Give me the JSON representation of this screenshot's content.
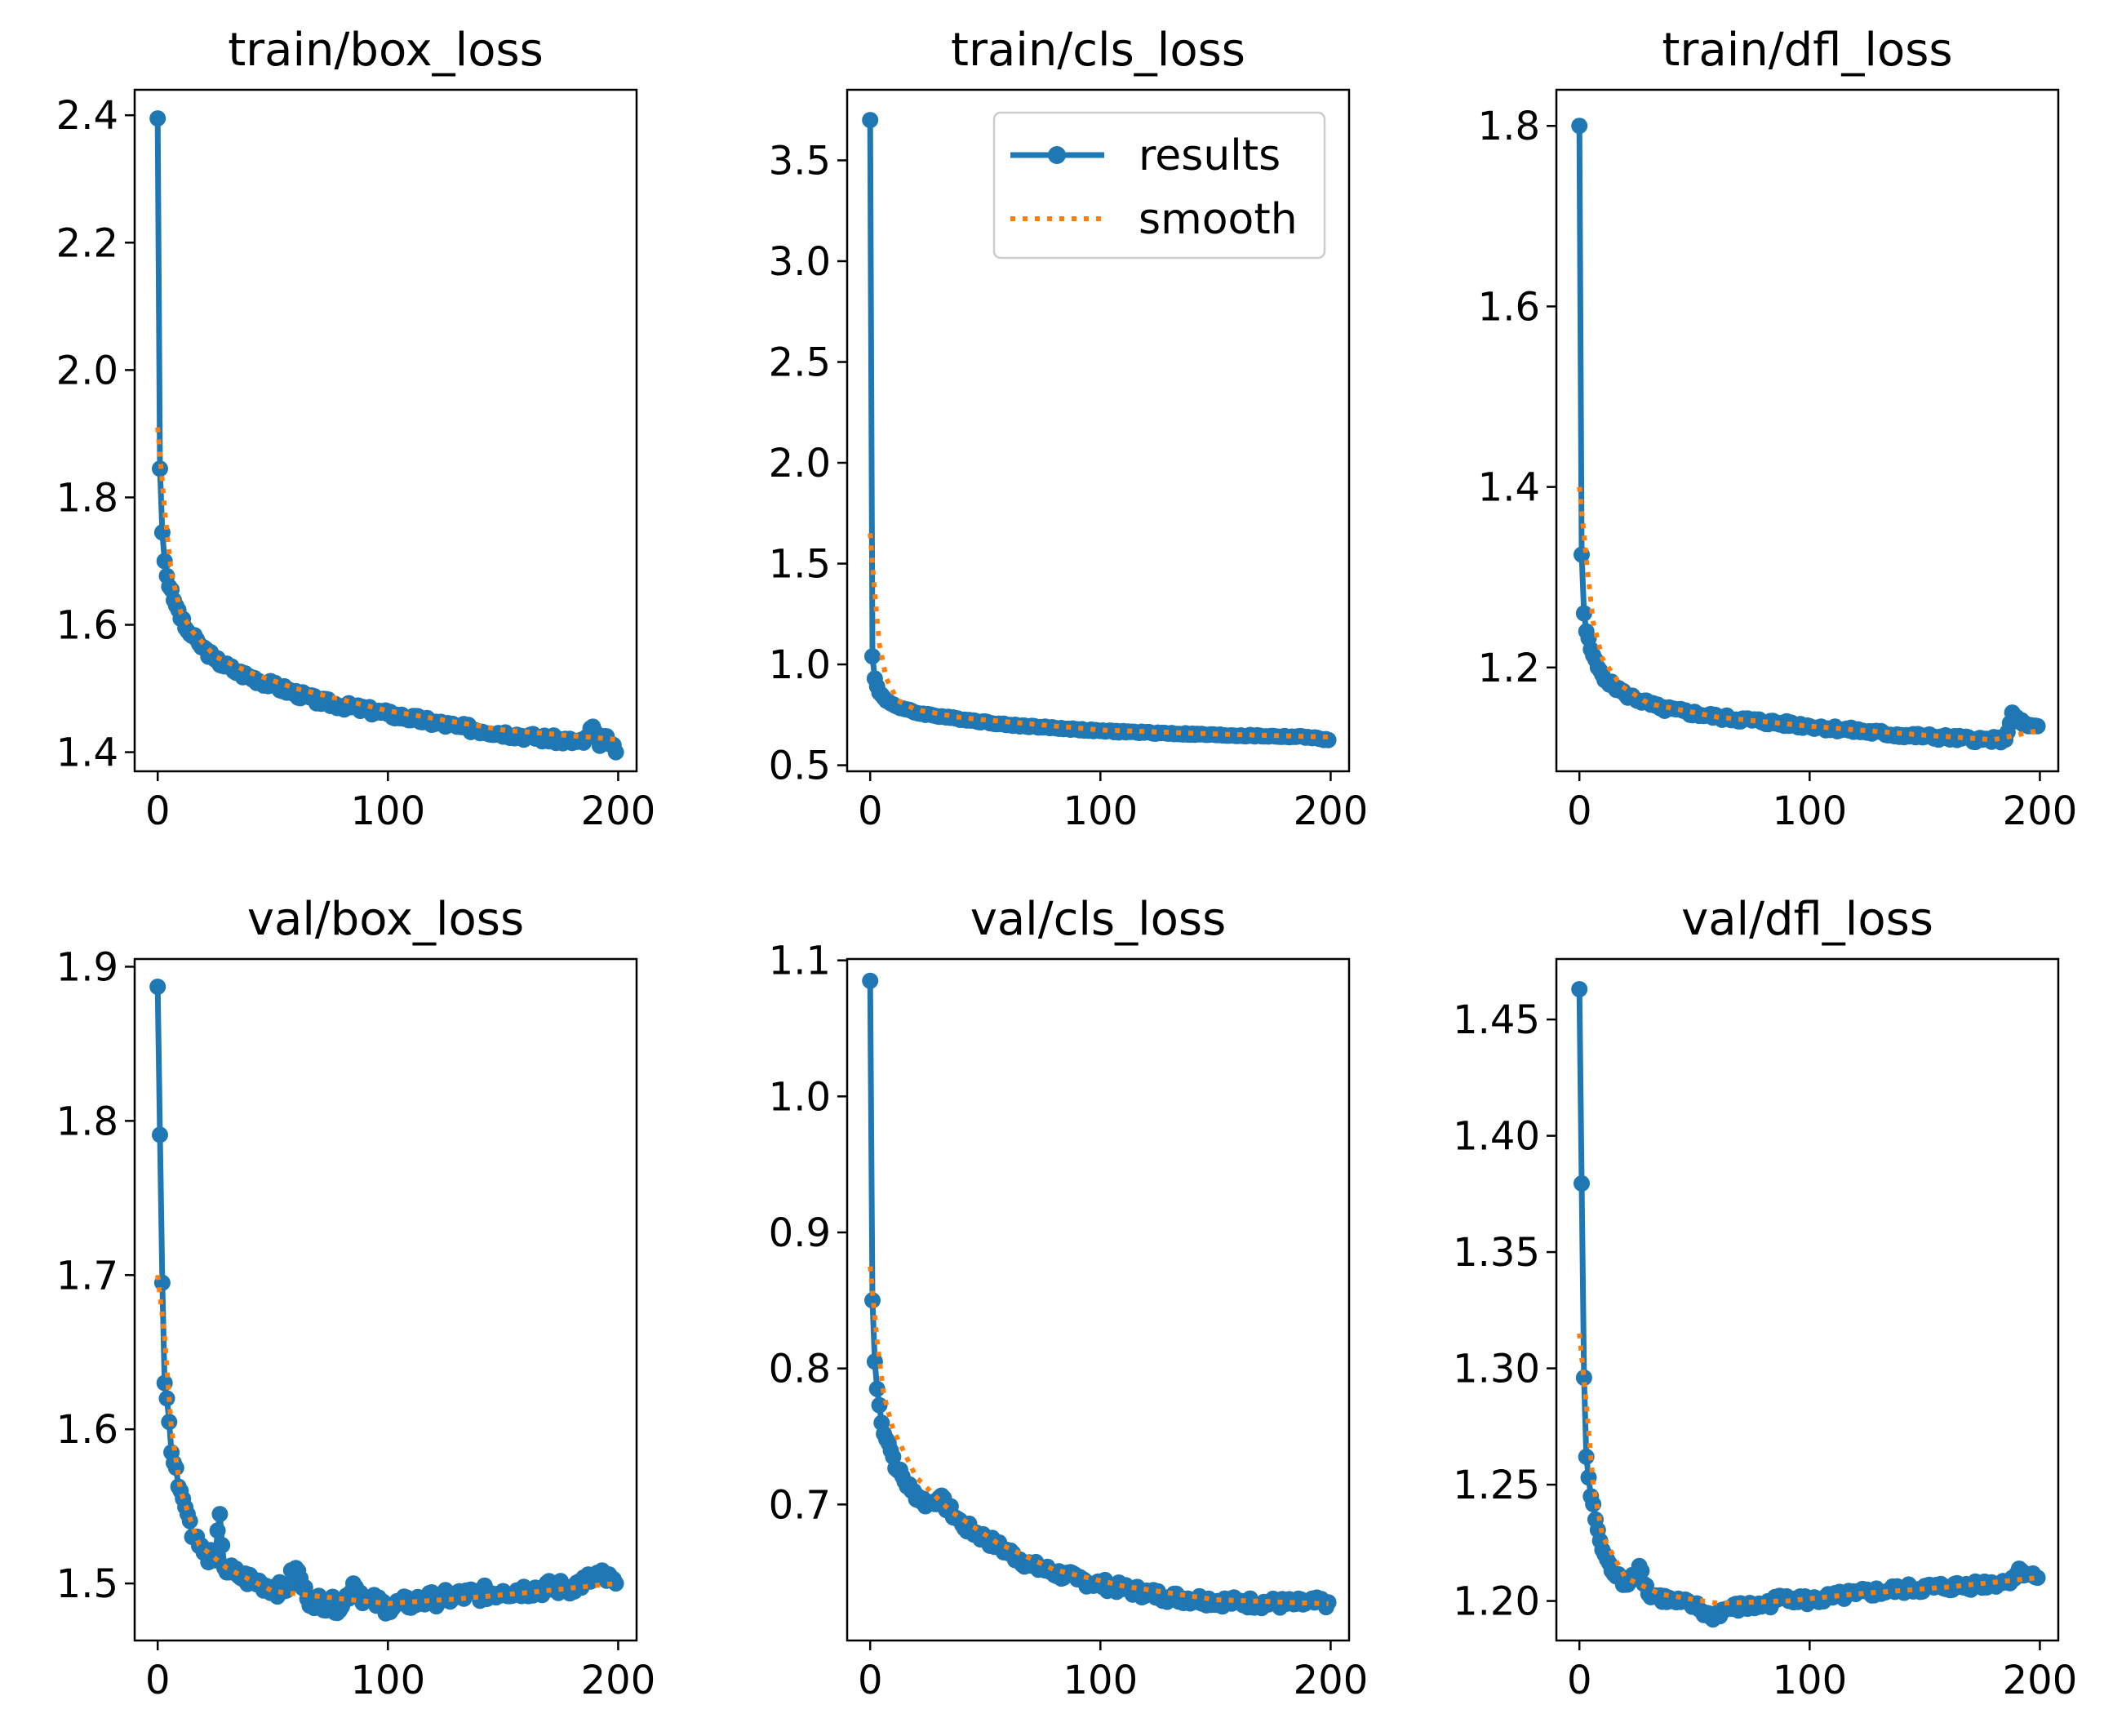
{
  "colors": {
    "results": "#1f77b4",
    "smooth": "#ff7f0e",
    "axes": "#000000"
  },
  "legend": {
    "placement": "top-right",
    "panel": 1,
    "entries": [
      "results",
      "smooth"
    ]
  },
  "chart_data": [
    {
      "type": "line",
      "title": "train/box_loss",
      "xlim": [
        -10,
        208
      ],
      "ylim": [
        1.37,
        2.44
      ],
      "xticks": [
        0,
        100,
        200
      ],
      "xtick_labels": [
        "0",
        "100",
        "200"
      ],
      "yticks": [
        1.4,
        1.6,
        1.8,
        2.0,
        2.2,
        2.4
      ],
      "ytick_labels": [
        "1.4",
        "1.6",
        "1.8",
        "2.0",
        "2.2",
        "2.4"
      ],
      "series": [
        {
          "name": "results",
          "keypoints": [
            [
              0,
              2.395
            ],
            [
              1,
              1.845
            ],
            [
              2,
              1.745
            ],
            [
              3,
              1.7
            ],
            [
              5,
              1.66
            ],
            [
              8,
              1.63
            ],
            [
              12,
              1.595
            ],
            [
              18,
              1.57
            ],
            [
              25,
              1.545
            ],
            [
              35,
              1.525
            ],
            [
              50,
              1.505
            ],
            [
              70,
              1.48
            ],
            [
              100,
              1.46
            ],
            [
              130,
              1.44
            ],
            [
              160,
              1.425
            ],
            [
              185,
              1.415
            ],
            [
              189,
              1.44
            ],
            [
              192,
              1.41
            ],
            [
              195,
              1.425
            ],
            [
              199,
              1.4
            ]
          ],
          "noise": 0.006
        },
        {
          "name": "smooth",
          "keypoints": [
            [
              0,
              1.91
            ],
            [
              3,
              1.78
            ],
            [
              6,
              1.68
            ],
            [
              10,
              1.62
            ],
            [
              15,
              1.59
            ],
            [
              25,
              1.55
            ],
            [
              40,
              1.525
            ],
            [
              60,
              1.5
            ],
            [
              100,
              1.465
            ],
            [
              150,
              1.435
            ],
            [
              199,
              1.42
            ]
          ]
        }
      ]
    },
    {
      "type": "line",
      "title": "train/cls_loss",
      "xlim": [
        -10,
        208
      ],
      "ylim": [
        0.47,
        3.85
      ],
      "xticks": [
        0,
        100,
        200
      ],
      "xtick_labels": [
        "0",
        "100",
        "200"
      ],
      "yticks": [
        0.5,
        1.0,
        1.5,
        2.0,
        2.5,
        3.0,
        3.5
      ],
      "ytick_labels": [
        "0.5",
        "1.0",
        "1.5",
        "2.0",
        "2.5",
        "3.0",
        "3.5"
      ],
      "series": [
        {
          "name": "results",
          "keypoints": [
            [
              0,
              3.7
            ],
            [
              1,
              1.04
            ],
            [
              2,
              0.93
            ],
            [
              4,
              0.86
            ],
            [
              7,
              0.82
            ],
            [
              12,
              0.79
            ],
            [
              20,
              0.76
            ],
            [
              35,
              0.735
            ],
            [
              60,
              0.7
            ],
            [
              100,
              0.67
            ],
            [
              150,
              0.65
            ],
            [
              190,
              0.64
            ],
            [
              199,
              0.625
            ]
          ],
          "noise": 0.004
        },
        {
          "name": "smooth",
          "keypoints": [
            [
              0,
              1.65
            ],
            [
              2,
              1.35
            ],
            [
              4,
              1.1
            ],
            [
              7,
              0.93
            ],
            [
              12,
              0.82
            ],
            [
              20,
              0.775
            ],
            [
              40,
              0.735
            ],
            [
              100,
              0.675
            ],
            [
              150,
              0.655
            ],
            [
              199,
              0.64
            ]
          ]
        }
      ]
    },
    {
      "type": "line",
      "title": "train/dfl_loss",
      "xlim": [
        -10,
        208
      ],
      "ylim": [
        1.085,
        1.84
      ],
      "xticks": [
        0,
        100,
        200
      ],
      "xtick_labels": [
        "0",
        "100",
        "200"
      ],
      "yticks": [
        1.2,
        1.4,
        1.6,
        1.8
      ],
      "ytick_labels": [
        "1.2",
        "1.4",
        "1.6",
        "1.8"
      ],
      "series": [
        {
          "name": "results",
          "keypoints": [
            [
              0,
              1.8
            ],
            [
              1,
              1.325
            ],
            [
              2,
              1.26
            ],
            [
              3,
              1.24
            ],
            [
              5,
              1.22
            ],
            [
              8,
              1.2
            ],
            [
              12,
              1.185
            ],
            [
              20,
              1.17
            ],
            [
              35,
              1.155
            ],
            [
              60,
              1.145
            ],
            [
              100,
              1.135
            ],
            [
              140,
              1.125
            ],
            [
              175,
              1.12
            ],
            [
              185,
              1.12
            ],
            [
              188,
              1.15
            ],
            [
              191,
              1.14
            ],
            [
              195,
              1.135
            ],
            [
              199,
              1.135
            ]
          ],
          "noise": 0.003
        },
        {
          "name": "smooth",
          "keypoints": [
            [
              0,
              1.4
            ],
            [
              3,
              1.32
            ],
            [
              6,
              1.25
            ],
            [
              10,
              1.21
            ],
            [
              18,
              1.18
            ],
            [
              30,
              1.16
            ],
            [
              60,
              1.145
            ],
            [
              100,
              1.135
            ],
            [
              150,
              1.125
            ],
            [
              180,
              1.12
            ],
            [
              199,
              1.13
            ]
          ]
        }
      ]
    },
    {
      "type": "line",
      "title": "val/box_loss",
      "xlim": [
        -10,
        208
      ],
      "ylim": [
        1.463,
        1.905
      ],
      "xticks": [
        0,
        100,
        200
      ],
      "xtick_labels": [
        "0",
        "100",
        "200"
      ],
      "yticks": [
        1.5,
        1.6,
        1.7,
        1.8,
        1.9
      ],
      "ytick_labels": [
        "1.5",
        "1.6",
        "1.7",
        "1.8",
        "1.9"
      ],
      "series": [
        {
          "name": "results",
          "keypoints": [
            [
              0,
              1.887
            ],
            [
              2,
              1.695
            ],
            [
              3,
              1.63
            ],
            [
              4,
              1.62
            ],
            [
              6,
              1.585
            ],
            [
              8,
              1.575
            ],
            [
              10,
              1.56
            ],
            [
              13,
              1.545
            ],
            [
              16,
              1.53
            ],
            [
              20,
              1.52
            ],
            [
              25,
              1.515
            ],
            [
              27,
              1.545
            ],
            [
              29,
              1.51
            ],
            [
              35,
              1.505
            ],
            [
              45,
              1.5
            ],
            [
              55,
              1.495
            ],
            [
              60,
              1.51
            ],
            [
              65,
              1.49
            ],
            [
              80,
              1.485
            ],
            [
              85,
              1.5
            ],
            [
              90,
              1.49
            ],
            [
              100,
              1.485
            ],
            [
              120,
              1.49
            ],
            [
              150,
              1.495
            ],
            [
              180,
              1.498
            ],
            [
              192,
              1.505
            ],
            [
              199,
              1.5
            ]
          ],
          "noise": 0.005
        },
        {
          "name": "smooth",
          "keypoints": [
            [
              0,
              1.7
            ],
            [
              3,
              1.66
            ],
            [
              6,
              1.6
            ],
            [
              10,
              1.56
            ],
            [
              18,
              1.525
            ],
            [
              30,
              1.51
            ],
            [
              50,
              1.495
            ],
            [
              80,
              1.49
            ],
            [
              100,
              1.487
            ],
            [
              130,
              1.49
            ],
            [
              160,
              1.494
            ],
            [
              199,
              1.5
            ]
          ]
        }
      ]
    },
    {
      "type": "line",
      "title": "val/cls_loss",
      "xlim": [
        -10,
        208
      ],
      "ylim": [
        0.6,
        1.101
      ],
      "xticks": [
        0,
        100,
        200
      ],
      "xtick_labels": [
        "0",
        "100",
        "200"
      ],
      "yticks": [
        0.7,
        0.8,
        0.9,
        1.0,
        1.1
      ],
      "ytick_labels": [
        "0.7",
        "0.8",
        "0.9",
        "1.0",
        "1.1"
      ],
      "series": [
        {
          "name": "results",
          "keypoints": [
            [
              0,
              1.085
            ],
            [
              1,
              0.85
            ],
            [
              2,
              0.805
            ],
            [
              3,
              0.785
            ],
            [
              5,
              0.76
            ],
            [
              8,
              0.745
            ],
            [
              12,
              0.725
            ],
            [
              18,
              0.71
            ],
            [
              25,
              0.7
            ],
            [
              30,
              0.705
            ],
            [
              40,
              0.685
            ],
            [
              55,
              0.67
            ],
            [
              70,
              0.655
            ],
            [
              90,
              0.645
            ],
            [
              110,
              0.638
            ],
            [
              130,
              0.632
            ],
            [
              160,
              0.628
            ],
            [
              185,
              0.627
            ],
            [
              199,
              0.628
            ]
          ],
          "noise": 0.004
        },
        {
          "name": "smooth",
          "keypoints": [
            [
              0,
              0.875
            ],
            [
              3,
              0.82
            ],
            [
              6,
              0.78
            ],
            [
              10,
              0.755
            ],
            [
              20,
              0.72
            ],
            [
              35,
              0.695
            ],
            [
              55,
              0.672
            ],
            [
              80,
              0.652
            ],
            [
              110,
              0.64
            ],
            [
              150,
              0.63
            ],
            [
              199,
              0.627
            ]
          ]
        }
      ]
    },
    {
      "type": "line",
      "title": "val/dfl_loss",
      "xlim": [
        -10,
        208
      ],
      "ylim": [
        1.183,
        1.476
      ],
      "xticks": [
        0,
        100,
        200
      ],
      "xtick_labels": [
        "0",
        "100",
        "200"
      ],
      "yticks": [
        1.2,
        1.25,
        1.3,
        1.35,
        1.4,
        1.45
      ],
      "ytick_labels": [
        "1.20",
        "1.25",
        "1.30",
        "1.35",
        "1.40",
        "1.45"
      ],
      "series": [
        {
          "name": "results",
          "keypoints": [
            [
              0,
              1.463
            ],
            [
              2,
              1.296
            ],
            [
              3,
              1.262
            ],
            [
              5,
              1.245
            ],
            [
              7,
              1.235
            ],
            [
              10,
              1.222
            ],
            [
              14,
              1.213
            ],
            [
              20,
              1.207
            ],
            [
              26,
              1.215
            ],
            [
              30,
              1.203
            ],
            [
              40,
              1.2
            ],
            [
              50,
              1.198
            ],
            [
              57,
              1.193
            ],
            [
              65,
              1.197
            ],
            [
              80,
              1.198
            ],
            [
              90,
              1.202
            ],
            [
              100,
              1.2
            ],
            [
              120,
              1.203
            ],
            [
              140,
              1.205
            ],
            [
              160,
              1.206
            ],
            [
              185,
              1.208
            ],
            [
              192,
              1.213
            ],
            [
              199,
              1.21
            ]
          ],
          "noise": 0.002
        },
        {
          "name": "smooth",
          "keypoints": [
            [
              0,
              1.315
            ],
            [
              3,
              1.285
            ],
            [
              6,
              1.25
            ],
            [
              10,
              1.228
            ],
            [
              20,
              1.21
            ],
            [
              35,
              1.203
            ],
            [
              60,
              1.199
            ],
            [
              90,
              1.2
            ],
            [
              120,
              1.203
            ],
            [
              160,
              1.206
            ],
            [
              199,
              1.21
            ]
          ]
        }
      ]
    }
  ]
}
